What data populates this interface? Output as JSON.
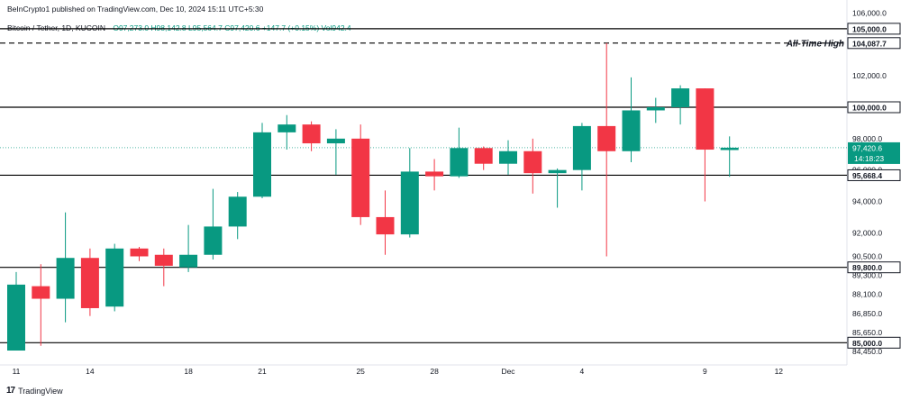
{
  "header": {
    "published": "BeInCrypto1 published on TradingView.com, Dec 10, 2024 15:11 UTC+5:30",
    "symbol": "Bitcoin / Tether, 1D, KUCOIN",
    "open": "O97,273.0",
    "high": "H98,142.8",
    "low": "L95,564.7",
    "close": "C97,420.6",
    "change": "+147.7 (+0.15%)",
    "volume": "Vol942.4"
  },
  "branding": {
    "logo_text": "TradingView"
  },
  "colors": {
    "up": "#089981",
    "down": "#f23645",
    "level_line": "#000000",
    "price_line": "#089981"
  },
  "chart_data": {
    "type": "candlestick",
    "ylim": [
      84000,
      106500
    ],
    "y_ticks": [
      {
        "value": 106000,
        "label": "106,000.0"
      },
      {
        "value": 102000,
        "label": "102,000.0"
      },
      {
        "value": 98000,
        "label": "98,000.0"
      },
      {
        "value": 96000,
        "label": "96,000.0"
      },
      {
        "value": 94000,
        "label": "94,000.0"
      },
      {
        "value": 92000,
        "label": "92,000.0"
      },
      {
        "value": 90500,
        "label": "90,500.0"
      },
      {
        "value": 89300,
        "label": "89,300.0"
      },
      {
        "value": 88100,
        "label": "88,100.0"
      },
      {
        "value": 86850,
        "label": "86,850.0"
      },
      {
        "value": 85650,
        "label": "85,650.0"
      },
      {
        "value": 84450,
        "label": "84,450.0"
      }
    ],
    "x_ticks": [
      {
        "index": 0,
        "label": "11"
      },
      {
        "index": 3,
        "label": "14"
      },
      {
        "index": 7,
        "label": "18"
      },
      {
        "index": 10,
        "label": "21"
      },
      {
        "index": 14,
        "label": "25"
      },
      {
        "index": 17,
        "label": "28"
      },
      {
        "index": 20,
        "label": "Dec"
      },
      {
        "index": 23,
        "label": "4"
      },
      {
        "index": 28,
        "label": "9"
      },
      {
        "index": 31,
        "label": "12"
      }
    ],
    "candles": [
      {
        "o": 84500,
        "h": 89500,
        "l": 84500,
        "c": 88700
      },
      {
        "o": 88600,
        "h": 90000,
        "l": 84800,
        "c": 87800
      },
      {
        "o": 87800,
        "h": 93300,
        "l": 86300,
        "c": 90400
      },
      {
        "o": 90400,
        "h": 91000,
        "l": 86700,
        "c": 87200
      },
      {
        "o": 87300,
        "h": 91300,
        "l": 87000,
        "c": 91000
      },
      {
        "o": 91000,
        "h": 91100,
        "l": 90200,
        "c": 90500
      },
      {
        "o": 90600,
        "h": 91000,
        "l": 88600,
        "c": 89900
      },
      {
        "o": 89800,
        "h": 92500,
        "l": 89500,
        "c": 90600
      },
      {
        "o": 90600,
        "h": 94800,
        "l": 90300,
        "c": 92400
      },
      {
        "o": 92400,
        "h": 94600,
        "l": 91600,
        "c": 94300
      },
      {
        "o": 94300,
        "h": 99000,
        "l": 94200,
        "c": 98400
      },
      {
        "o": 98400,
        "h": 99500,
        "l": 97300,
        "c": 98900
      },
      {
        "o": 98900,
        "h": 99100,
        "l": 97200,
        "c": 97700
      },
      {
        "o": 97700,
        "h": 98600,
        "l": 95700,
        "c": 98000
      },
      {
        "o": 98000,
        "h": 98900,
        "l": 92500,
        "c": 93000
      },
      {
        "o": 93000,
        "h": 94700,
        "l": 90600,
        "c": 91900
      },
      {
        "o": 91900,
        "h": 97400,
        "l": 91700,
        "c": 95900
      },
      {
        "o": 95900,
        "h": 96700,
        "l": 94700,
        "c": 95600
      },
      {
        "o": 95600,
        "h": 98700,
        "l": 95500,
        "c": 97400
      },
      {
        "o": 97400,
        "h": 97500,
        "l": 96000,
        "c": 96400
      },
      {
        "o": 96400,
        "h": 97900,
        "l": 95700,
        "c": 97200
      },
      {
        "o": 97200,
        "h": 98000,
        "l": 94500,
        "c": 95800
      },
      {
        "o": 95800,
        "h": 96100,
        "l": 93600,
        "c": 96000
      },
      {
        "o": 96000,
        "h": 99000,
        "l": 94700,
        "c": 98800
      },
      {
        "o": 98800,
        "h": 104088,
        "l": 90500,
        "c": 97200
      },
      {
        "o": 97200,
        "h": 101900,
        "l": 96500,
        "c": 99800
      },
      {
        "o": 99800,
        "h": 100600,
        "l": 99000,
        "c": 100000
      },
      {
        "o": 100000,
        "h": 101400,
        "l": 98900,
        "c": 101200
      },
      {
        "o": 101200,
        "h": 101200,
        "l": 94000,
        "c": 97300
      },
      {
        "o": 97273,
        "h": 98143,
        "l": 95565,
        "c": 97421
      }
    ],
    "horizontal_levels": [
      {
        "value": 105000,
        "label": "105,000.0",
        "style": "solid"
      },
      {
        "value": 104087.7,
        "label": "104,087.7",
        "style": "dashed",
        "annotation": "All-Time High"
      },
      {
        "value": 100000,
        "label": "100,000.0",
        "style": "solid"
      },
      {
        "value": 95668.4,
        "label": "95,668.4",
        "style": "solid"
      },
      {
        "value": 89800,
        "label": "89,800.0",
        "style": "solid"
      },
      {
        "value": 85000,
        "label": "85,000.0",
        "style": "solid"
      }
    ],
    "current_price": {
      "value": 97420.6,
      "label": "97,420.6",
      "countdown": "14:18:23"
    }
  }
}
